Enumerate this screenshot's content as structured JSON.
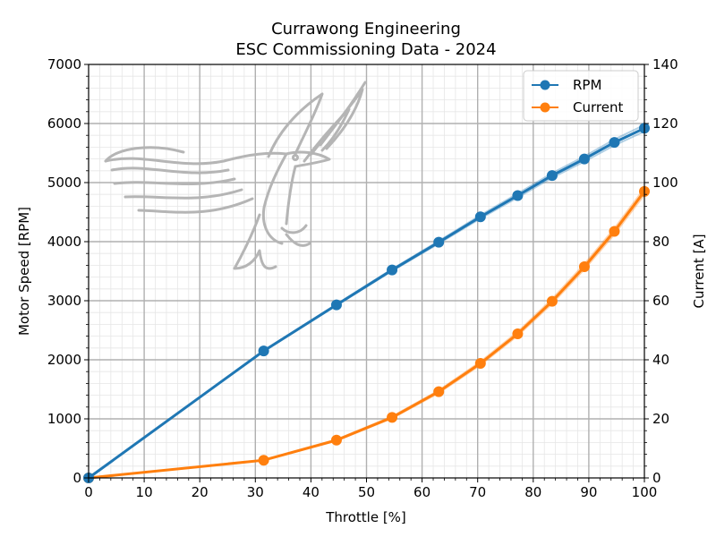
{
  "chart_data": {
    "type": "line",
    "title_line1": "Currawong Engineering",
    "title_line2": "ESC Commissioning Data - 2024",
    "xlabel": "Throttle [%]",
    "ylabel_left": "Motor Speed [RPM]",
    "ylabel_right": "Current [A]",
    "xlim": [
      0,
      100
    ],
    "ylim_left": [
      0,
      7000
    ],
    "ylim_right": [
      0,
      140
    ],
    "xticks": [
      "0",
      "10",
      "20",
      "30",
      "40",
      "50",
      "60",
      "70",
      "80",
      "90",
      "100"
    ],
    "yticks_left": [
      "0",
      "1000",
      "2000",
      "3000",
      "4000",
      "5000",
      "6000",
      "7000"
    ],
    "yticks_right": [
      "0",
      "20",
      "40",
      "60",
      "80",
      "100",
      "120",
      "140"
    ],
    "grid": true,
    "legend_position": "upper-right",
    "series": [
      {
        "name": "RPM",
        "axis": "left",
        "color": "#1f77b4",
        "x": [
          0,
          31.5,
          44.6,
          54.6,
          63.0,
          70.5,
          77.2,
          83.4,
          89.2,
          94.6,
          100
        ],
        "y": [
          0,
          2150,
          2930,
          3520,
          3990,
          4420,
          4780,
          5120,
          5400,
          5680,
          5920
        ]
      },
      {
        "name": "Current",
        "axis": "right",
        "color": "#ff7f0e",
        "x": [
          0,
          31.5,
          44.6,
          54.6,
          63.0,
          70.5,
          77.2,
          83.4,
          89.2,
          94.6,
          100
        ],
        "y": [
          0,
          6,
          12.8,
          20.5,
          29.2,
          38.8,
          48.8,
          59.8,
          71.5,
          83.5,
          97
        ]
      }
    ]
  },
  "watermark": {
    "description_icon": "currawong-bird-logo"
  }
}
